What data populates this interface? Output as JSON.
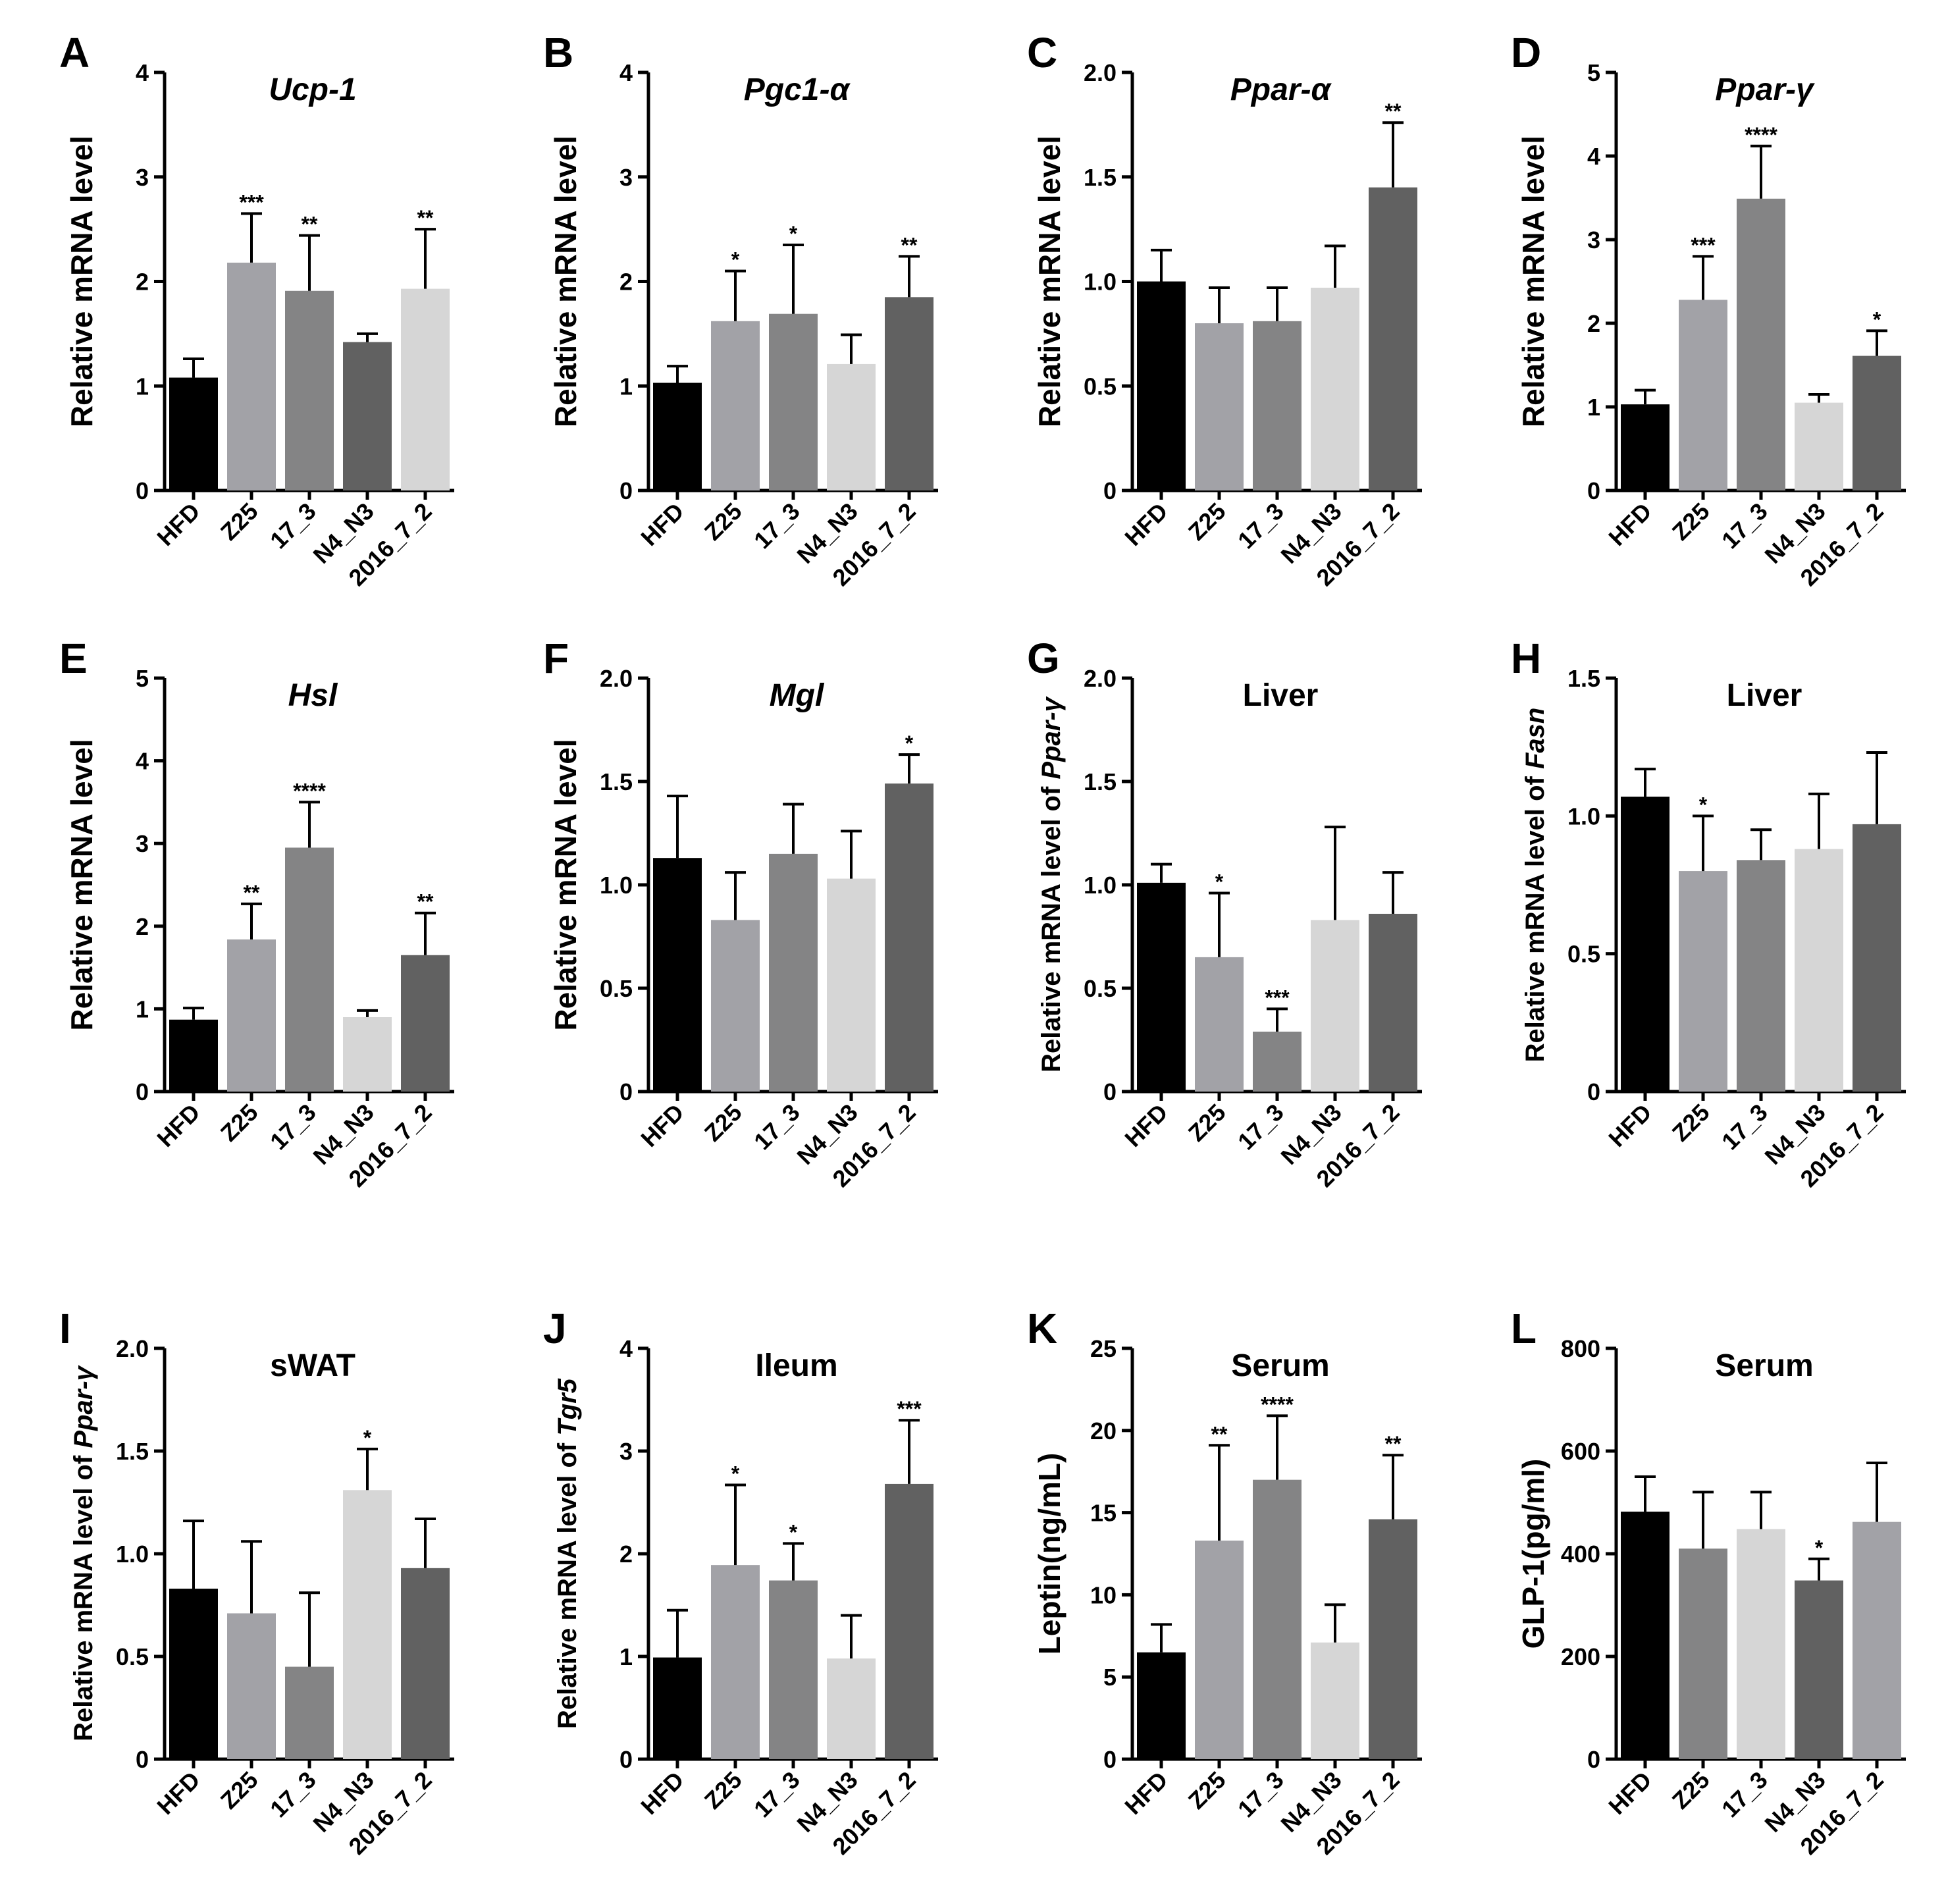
{
  "colors": {
    "black": "#000000",
    "gray1": "#a2a2a7",
    "gray2": "#848485",
    "dark": "#616161",
    "light": "#d6d6d6"
  },
  "chart_data": [
    {
      "panel": "A",
      "type": "bar",
      "title": "Ucp-1",
      "title_italic": true,
      "ylabel": "Relative mRNA level",
      "categories": [
        "HFD",
        "Z25",
        "17_3",
        "N4_N3",
        "2016_7_2"
      ],
      "values": [
        1.08,
        2.18,
        1.91,
        1.42,
        1.93
      ],
      "errors": [
        0.18,
        0.47,
        0.53,
        0.08,
        0.57
      ],
      "significance": [
        "",
        "***",
        "**",
        "",
        "**"
      ],
      "bar_colors": [
        "black",
        "gray1",
        "gray2",
        "dark",
        "light"
      ],
      "ylim": [
        0,
        4
      ],
      "yticks": [
        "0",
        "1",
        "2",
        "3",
        "4"
      ]
    },
    {
      "panel": "B",
      "type": "bar",
      "title": "Pgc1-α",
      "title_italic": true,
      "ylabel": "Relative mRNA level",
      "categories": [
        "HFD",
        "Z25",
        "17_3",
        "N4_N3",
        "2016_7_2"
      ],
      "values": [
        1.03,
        1.62,
        1.69,
        1.21,
        1.85
      ],
      "errors": [
        0.16,
        0.48,
        0.66,
        0.28,
        0.39
      ],
      "significance": [
        "",
        "*",
        "*",
        "",
        "**"
      ],
      "bar_colors": [
        "black",
        "gray1",
        "gray2",
        "light",
        "dark"
      ],
      "ylim": [
        0,
        4
      ],
      "yticks": [
        "0",
        "1",
        "2",
        "3",
        "4"
      ]
    },
    {
      "panel": "C",
      "type": "bar",
      "title": "Ppar-α",
      "title_italic": true,
      "ylabel": "Relative mRNA level",
      "categories": [
        "HFD",
        "Z25",
        "17_3",
        "N4_N3",
        "2016_7_2"
      ],
      "values": [
        1.0,
        0.8,
        0.81,
        0.97,
        1.45
      ],
      "errors": [
        0.15,
        0.17,
        0.16,
        0.2,
        0.31
      ],
      "significance": [
        "",
        "",
        "",
        "",
        "**"
      ],
      "bar_colors": [
        "black",
        "gray1",
        "gray2",
        "light",
        "dark"
      ],
      "ylim": [
        0,
        2
      ],
      "yticks": [
        "0",
        "0.5",
        "1.0",
        "1.5",
        "2.0"
      ]
    },
    {
      "panel": "D",
      "type": "bar",
      "title": "Ppar-γ",
      "title_italic": true,
      "ylabel": "Relative mRNA level",
      "categories": [
        "HFD",
        "Z25",
        "17_3",
        "N4_N3",
        "2016_7_2"
      ],
      "values": [
        1.03,
        2.28,
        3.49,
        1.05,
        1.61
      ],
      "errors": [
        0.17,
        0.52,
        0.63,
        0.1,
        0.3
      ],
      "significance": [
        "",
        "***",
        "****",
        "",
        "*"
      ],
      "bar_colors": [
        "black",
        "gray1",
        "gray2",
        "light",
        "dark"
      ],
      "ylim": [
        0,
        5
      ],
      "yticks": [
        "0",
        "1",
        "2",
        "3",
        "4",
        "5"
      ]
    },
    {
      "panel": "E",
      "type": "bar",
      "title": "Hsl",
      "title_italic": true,
      "ylabel": "Relative mRNA level",
      "categories": [
        "HFD",
        "Z25",
        "17_3",
        "N4_N3",
        "2016_7_2"
      ],
      "values": [
        0.87,
        1.84,
        2.95,
        0.9,
        1.65
      ],
      "errors": [
        0.14,
        0.43,
        0.55,
        0.08,
        0.51
      ],
      "significance": [
        "",
        "**",
        "****",
        "",
        "**"
      ],
      "bar_colors": [
        "black",
        "gray1",
        "gray2",
        "light",
        "dark"
      ],
      "ylim": [
        0,
        5
      ],
      "yticks": [
        "0",
        "1",
        "2",
        "3",
        "4",
        "5"
      ]
    },
    {
      "panel": "F",
      "type": "bar",
      "title": "Mgl",
      "title_italic": true,
      "ylabel": "Relative mRNA level",
      "categories": [
        "HFD",
        "Z25",
        "17_3",
        "N4_N3",
        "2016_7_2"
      ],
      "values": [
        1.13,
        0.83,
        1.15,
        1.03,
        1.49
      ],
      "errors": [
        0.3,
        0.23,
        0.24,
        0.23,
        0.14
      ],
      "significance": [
        "",
        "",
        "",
        "",
        "*"
      ],
      "bar_colors": [
        "black",
        "gray1",
        "gray2",
        "light",
        "dark"
      ],
      "ylim": [
        0,
        2
      ],
      "yticks": [
        "0",
        "0.5",
        "1.0",
        "1.5",
        "2.0"
      ]
    },
    {
      "panel": "G",
      "type": "bar",
      "title": "Liver",
      "title_italic": false,
      "ylabel_parts": [
        "Relative mRNA level of ",
        "Ppar-γ"
      ],
      "categories": [
        "HFD",
        "Z25",
        "17_3",
        "N4_N3",
        "2016_7_2"
      ],
      "values": [
        1.01,
        0.65,
        0.29,
        0.83,
        0.86
      ],
      "errors": [
        0.09,
        0.31,
        0.11,
        0.45,
        0.2
      ],
      "significance": [
        "",
        "*",
        "***",
        "",
        ""
      ],
      "bar_colors": [
        "black",
        "gray1",
        "gray2",
        "light",
        "dark"
      ],
      "ylim": [
        0,
        2
      ],
      "yticks": [
        "0",
        "0.5",
        "1.0",
        "1.5",
        "2.0"
      ]
    },
    {
      "panel": "H",
      "type": "bar",
      "title": "Liver",
      "title_italic": false,
      "ylabel_parts": [
        "Relative mRNA level of ",
        "Fasn"
      ],
      "categories": [
        "HFD",
        "Z25",
        "17_3",
        "N4_N3",
        "2016_7_2"
      ],
      "values": [
        1.07,
        0.8,
        0.84,
        0.88,
        0.97
      ],
      "errors": [
        0.1,
        0.2,
        0.11,
        0.2,
        0.26
      ],
      "significance": [
        "",
        "*",
        "",
        "",
        ""
      ],
      "bar_colors": [
        "black",
        "gray1",
        "gray2",
        "light",
        "dark"
      ],
      "ylim": [
        0,
        1.5
      ],
      "yticks": [
        "0",
        "0.5",
        "1.0",
        "1.5"
      ]
    },
    {
      "panel": "I",
      "type": "bar",
      "title": "sWAT",
      "title_italic": false,
      "ylabel_parts": [
        "Relative mRNA level of ",
        "Ppar-γ"
      ],
      "categories": [
        "HFD",
        "Z25",
        "17_3",
        "N4_N3",
        "2016_7_2"
      ],
      "values": [
        0.83,
        0.71,
        0.45,
        1.31,
        0.93
      ],
      "errors": [
        0.33,
        0.35,
        0.36,
        0.2,
        0.24
      ],
      "significance": [
        "",
        "",
        "",
        "*",
        ""
      ],
      "bar_colors": [
        "black",
        "gray1",
        "gray2",
        "light",
        "dark"
      ],
      "ylim": [
        0,
        2
      ],
      "yticks": [
        "0",
        "0.5",
        "1.0",
        "1.5",
        "2.0"
      ]
    },
    {
      "panel": "J",
      "type": "bar",
      "title": "Ileum",
      "title_italic": false,
      "ylabel_parts": [
        "Relative mRNA level of ",
        "Tgr5"
      ],
      "categories": [
        "HFD",
        "Z25",
        "17_3",
        "N4_N3",
        "2016_7_2"
      ],
      "values": [
        0.99,
        1.89,
        1.74,
        0.98,
        2.68
      ],
      "errors": [
        0.46,
        0.78,
        0.36,
        0.42,
        0.62
      ],
      "significance": [
        "",
        "*",
        "*",
        "",
        "***"
      ],
      "bar_colors": [
        "black",
        "gray1",
        "gray2",
        "light",
        "dark"
      ],
      "ylim": [
        0,
        4
      ],
      "yticks": [
        "0",
        "1",
        "2",
        "3",
        "4"
      ]
    },
    {
      "panel": "K",
      "type": "bar",
      "title": "Serum",
      "title_italic": false,
      "ylabel": "Leptin(ng/mL)",
      "categories": [
        "HFD",
        "Z25",
        "17_3",
        "N4_N3",
        "2016_7_2"
      ],
      "values": [
        6.5,
        13.3,
        17.0,
        7.1,
        14.6
      ],
      "errors": [
        1.7,
        5.8,
        3.9,
        2.3,
        3.9
      ],
      "significance": [
        "",
        "**",
        "****",
        "",
        "**"
      ],
      "bar_colors": [
        "black",
        "gray1",
        "gray2",
        "light",
        "dark"
      ],
      "ylim": [
        0,
        25
      ],
      "yticks": [
        "0",
        "5",
        "10",
        "15",
        "20",
        "25"
      ]
    },
    {
      "panel": "L",
      "type": "bar",
      "title": "Serum",
      "title_italic": false,
      "ylabel": "GLP-1(pg/ml)",
      "categories": [
        "HFD",
        "Z25",
        "17_3",
        "N4_N3",
        "2016_7_2"
      ],
      "values": [
        482,
        410,
        448,
        348,
        462
      ],
      "errors": [
        68,
        110,
        72,
        42,
        115
      ],
      "significance": [
        "",
        "",
        "",
        "*",
        ""
      ],
      "bar_colors": [
        "black",
        "gray2",
        "light",
        "dark",
        "gray1"
      ],
      "ylim": [
        0,
        800
      ],
      "yticks": [
        "0",
        "200",
        "400",
        "600",
        "800"
      ]
    }
  ]
}
